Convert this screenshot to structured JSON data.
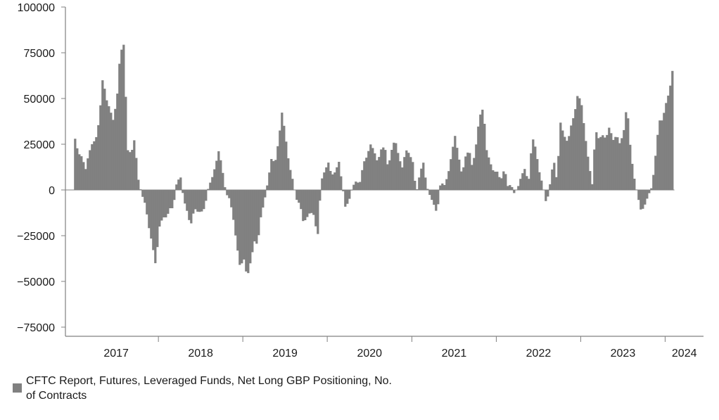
{
  "chart_data": {
    "type": "bar",
    "title": "",
    "xlabel": "",
    "ylabel": "",
    "ylim": [
      -80000,
      100000
    ],
    "y_ticks": [
      100000,
      75000,
      50000,
      25000,
      0,
      -25000,
      -50000,
      -75000
    ],
    "y_tick_labels": [
      "100000",
      "75000",
      "50000",
      "25000",
      "0",
      "−25000",
      "−50000",
      "−75000"
    ],
    "x_range": [
      "2016-11-25",
      "2024-06-15"
    ],
    "x_tick_labels": [
      "2017",
      "2018",
      "2019",
      "2020",
      "2021",
      "2022",
      "2023",
      "2024"
    ],
    "series": [
      {
        "name": "CFTC Report, Futures, Leveraged Funds, Net Long GBP Positioning, No. of Contracts",
        "color": "#808080",
        "points": [
          [
            "2017-01-01",
            28000
          ],
          [
            "2017-01-15",
            20000
          ],
          [
            "2017-02-01",
            18000
          ],
          [
            "2017-02-15",
            11000
          ],
          [
            "2017-03-01",
            20000
          ],
          [
            "2017-03-15",
            25000
          ],
          [
            "2017-04-01",
            28000
          ],
          [
            "2017-04-15",
            38000
          ],
          [
            "2017-05-01",
            62000
          ],
          [
            "2017-05-15",
            50000
          ],
          [
            "2017-06-01",
            44000
          ],
          [
            "2017-06-15",
            38000
          ],
          [
            "2017-07-01",
            50000
          ],
          [
            "2017-07-15",
            75000
          ],
          [
            "2017-08-01",
            80000
          ],
          [
            "2017-08-15",
            22000
          ],
          [
            "2017-09-01",
            20000
          ],
          [
            "2017-09-15",
            28000
          ],
          [
            "2017-10-01",
            6000
          ],
          [
            "2017-10-15",
            -2000
          ],
          [
            "2017-11-01",
            -8000
          ],
          [
            "2017-11-15",
            -20000
          ],
          [
            "2017-12-01",
            -30000
          ],
          [
            "2017-12-15",
            -41000
          ],
          [
            "2018-01-01",
            -20000
          ],
          [
            "2018-01-15",
            -15000
          ],
          [
            "2018-02-01",
            -15000
          ],
          [
            "2018-02-15",
            -10000
          ],
          [
            "2018-03-01",
            -10000
          ],
          [
            "2018-03-15",
            3000
          ],
          [
            "2018-04-01",
            8000
          ],
          [
            "2018-04-15",
            -5000
          ],
          [
            "2018-05-01",
            -12000
          ],
          [
            "2018-05-15",
            -20000
          ],
          [
            "2018-06-01",
            -10000
          ],
          [
            "2018-06-15",
            -12000
          ],
          [
            "2018-07-01",
            -12000
          ],
          [
            "2018-07-15",
            -10000
          ],
          [
            "2018-08-01",
            2000
          ],
          [
            "2018-08-15",
            6000
          ],
          [
            "2018-09-01",
            14000
          ],
          [
            "2018-09-15",
            22000
          ],
          [
            "2018-10-01",
            10000
          ],
          [
            "2018-10-15",
            -2000
          ],
          [
            "2018-11-01",
            -5000
          ],
          [
            "2018-11-15",
            -15000
          ],
          [
            "2018-12-01",
            -30000
          ],
          [
            "2018-12-15",
            -42000
          ],
          [
            "2019-01-01",
            -38000
          ],
          [
            "2019-01-15",
            -48000
          ],
          [
            "2019-02-01",
            -38000
          ],
          [
            "2019-02-15",
            -28000
          ],
          [
            "2019-03-01",
            -30000
          ],
          [
            "2019-03-15",
            -15000
          ],
          [
            "2019-04-01",
            -5000
          ],
          [
            "2019-04-15",
            5000
          ],
          [
            "2019-05-01",
            18000
          ],
          [
            "2019-05-15",
            14000
          ],
          [
            "2019-06-01",
            28000
          ],
          [
            "2019-06-15",
            43000
          ],
          [
            "2019-07-01",
            28000
          ],
          [
            "2019-07-15",
            14000
          ],
          [
            "2019-08-01",
            5000
          ],
          [
            "2019-08-15",
            -5000
          ],
          [
            "2019-09-01",
            -8000
          ],
          [
            "2019-09-15",
            -18000
          ],
          [
            "2019-10-01",
            -15000
          ],
          [
            "2019-10-15",
            -12000
          ],
          [
            "2019-11-01",
            -14000
          ],
          [
            "2019-11-15",
            -27000
          ],
          [
            "2019-12-01",
            5000
          ],
          [
            "2019-12-15",
            10000
          ],
          [
            "2020-01-01",
            15000
          ],
          [
            "2020-01-15",
            8000
          ],
          [
            "2020-02-01",
            10000
          ],
          [
            "2020-02-15",
            16000
          ],
          [
            "2020-03-01",
            3000
          ],
          [
            "2020-03-15",
            -10000
          ],
          [
            "2020-04-01",
            -5000
          ],
          [
            "2020-04-15",
            2000
          ],
          [
            "2020-05-01",
            5000
          ],
          [
            "2020-05-15",
            3000
          ],
          [
            "2020-06-01",
            15000
          ],
          [
            "2020-06-15",
            18000
          ],
          [
            "2020-07-01",
            25000
          ],
          [
            "2020-07-15",
            22000
          ],
          [
            "2020-08-01",
            15000
          ],
          [
            "2020-08-15",
            22000
          ],
          [
            "2020-09-01",
            24000
          ],
          [
            "2020-09-15",
            12000
          ],
          [
            "2020-10-01",
            22000
          ],
          [
            "2020-10-15",
            28000
          ],
          [
            "2020-11-01",
            18000
          ],
          [
            "2020-11-15",
            12000
          ],
          [
            "2020-12-01",
            22000
          ],
          [
            "2020-12-15",
            20000
          ],
          [
            "2021-01-01",
            15000
          ],
          [
            "2021-01-15",
            -2000
          ],
          [
            "2021-02-01",
            10000
          ],
          [
            "2021-02-15",
            15000
          ],
          [
            "2021-03-01",
            2000
          ],
          [
            "2021-03-15",
            -3000
          ],
          [
            "2021-04-01",
            -8000
          ],
          [
            "2021-04-15",
            -13000
          ],
          [
            "2021-05-01",
            5000
          ],
          [
            "2021-05-15",
            2000
          ],
          [
            "2021-06-01",
            8000
          ],
          [
            "2021-06-15",
            18000
          ],
          [
            "2021-07-01",
            30000
          ],
          [
            "2021-07-15",
            20000
          ],
          [
            "2021-08-01",
            8000
          ],
          [
            "2021-08-15",
            18000
          ],
          [
            "2021-09-01",
            22000
          ],
          [
            "2021-09-15",
            12000
          ],
          [
            "2021-10-01",
            25000
          ],
          [
            "2021-10-15",
            40000
          ],
          [
            "2021-11-01",
            45000
          ],
          [
            "2021-11-15",
            22000
          ],
          [
            "2021-12-01",
            15000
          ],
          [
            "2021-12-15",
            10000
          ],
          [
            "2022-01-01",
            10000
          ],
          [
            "2022-01-15",
            5000
          ],
          [
            "2022-02-01",
            12000
          ],
          [
            "2022-02-15",
            2000
          ],
          [
            "2022-03-01",
            3000
          ],
          [
            "2022-03-15",
            -2000
          ],
          [
            "2022-04-01",
            2000
          ],
          [
            "2022-04-15",
            8000
          ],
          [
            "2022-05-01",
            12000
          ],
          [
            "2022-05-15",
            3000
          ],
          [
            "2022-06-01",
            29000
          ],
          [
            "2022-06-15",
            23000
          ],
          [
            "2022-07-01",
            10000
          ],
          [
            "2022-07-15",
            3000
          ],
          [
            "2022-08-01",
            -8000
          ],
          [
            "2022-08-15",
            2000
          ],
          [
            "2022-09-01",
            17000
          ],
          [
            "2022-09-15",
            5000
          ],
          [
            "2022-10-01",
            37000
          ],
          [
            "2022-10-15",
            30000
          ],
          [
            "2022-11-01",
            26000
          ],
          [
            "2022-11-15",
            35000
          ],
          [
            "2022-12-01",
            42000
          ],
          [
            "2022-12-15",
            53000
          ],
          [
            "2023-01-01",
            46000
          ],
          [
            "2023-01-15",
            30000
          ],
          [
            "2023-02-01",
            14000
          ],
          [
            "2023-02-15",
            3000
          ],
          [
            "2023-03-01",
            33000
          ],
          [
            "2023-03-15",
            28000
          ],
          [
            "2023-04-01",
            30000
          ],
          [
            "2023-04-15",
            28000
          ],
          [
            "2023-05-01",
            35000
          ],
          [
            "2023-05-15",
            27000
          ],
          [
            "2023-06-01",
            30000
          ],
          [
            "2023-06-15",
            25000
          ],
          [
            "2023-07-01",
            32000
          ],
          [
            "2023-07-15",
            47000
          ],
          [
            "2023-08-01",
            20000
          ],
          [
            "2023-08-15",
            7000
          ],
          [
            "2023-09-01",
            -4000
          ],
          [
            "2023-09-15",
            -12000
          ],
          [
            "2023-10-01",
            -8000
          ],
          [
            "2023-10-15",
            -3000
          ],
          [
            "2023-11-01",
            2000
          ],
          [
            "2023-11-15",
            18000
          ],
          [
            "2023-12-01",
            38000
          ],
          [
            "2023-12-15",
            38000
          ],
          [
            "2024-01-01",
            48000
          ],
          [
            "2024-01-15",
            54000
          ],
          [
            "2024-02-01",
            69000
          ]
        ]
      }
    ],
    "legend_position": "bottom-left",
    "grid": false
  }
}
